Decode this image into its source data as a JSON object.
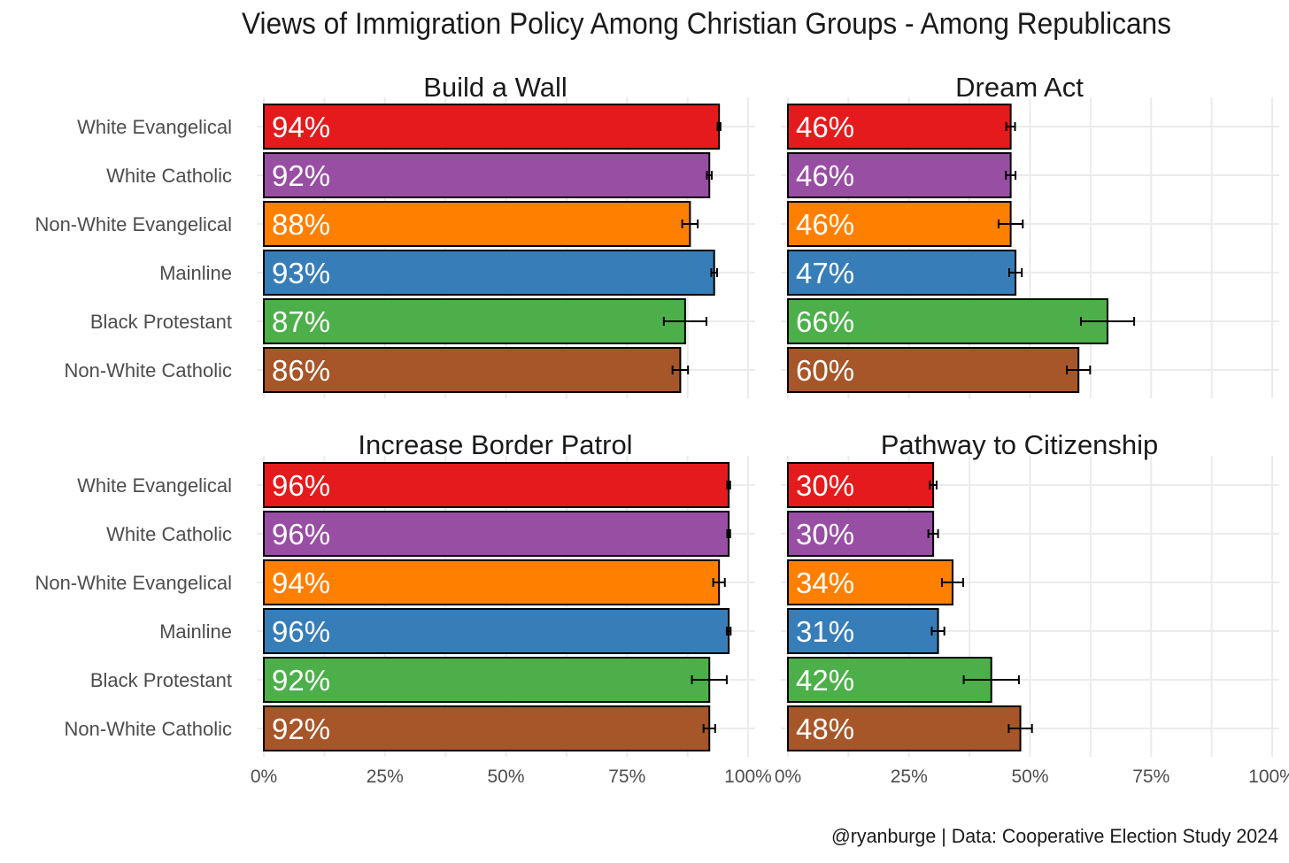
{
  "chart_data": {
    "type": "bar",
    "title": "Views of Immigration Policy Among Christian Groups - Among Republicans",
    "caption": "@ryanburge | Data: Cooperative Election Study 2024",
    "categories": [
      "White Evangelical",
      "White Catholic",
      "Non-White Evangelical",
      "Mainline",
      "Black Protestant",
      "Non-White Catholic"
    ],
    "colors": [
      "#E41A1C",
      "#984EA3",
      "#FF7F00",
      "#377EB8",
      "#4DAF4A",
      "#A65628"
    ],
    "xlim": [
      0,
      100
    ],
    "x_ticks": [
      "0%",
      "25%",
      "50%",
      "75%",
      "100%"
    ],
    "grid": true,
    "orientation": "horizontal",
    "panels": [
      {
        "title": "Build a Wall",
        "values": [
          94,
          92,
          88,
          93,
          87,
          86
        ],
        "labels": [
          "94%",
          "92%",
          "88%",
          "93%",
          "87%",
          "86%"
        ],
        "error": [
          0.3,
          0.5,
          1.6,
          0.6,
          4.4,
          1.6
        ]
      },
      {
        "title": "Dream Act",
        "values": [
          46,
          46,
          46,
          47,
          66,
          60
        ],
        "labels": [
          "46%",
          "46%",
          "46%",
          "47%",
          "66%",
          "60%"
        ],
        "error": [
          0.9,
          1.0,
          2.5,
          1.3,
          5.5,
          2.4
        ]
      },
      {
        "title": "Increase Border Patrol",
        "values": [
          96,
          96,
          94,
          96,
          92,
          92
        ],
        "labels": [
          "96%",
          "96%",
          "94%",
          "96%",
          "92%",
          "92%"
        ],
        "error": [
          0.3,
          0.3,
          1.2,
          0.4,
          3.6,
          1.2
        ]
      },
      {
        "title": "Pathway to Citizenship",
        "values": [
          30,
          30,
          34,
          31,
          42,
          48
        ],
        "labels": [
          "30%",
          "30%",
          "34%",
          "31%",
          "42%",
          "48%"
        ],
        "error": [
          0.7,
          1.0,
          2.2,
          1.3,
          5.7,
          2.4
        ]
      }
    ]
  }
}
